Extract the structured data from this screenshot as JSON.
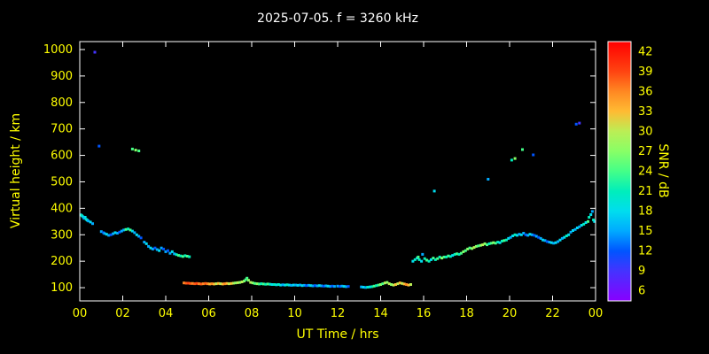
{
  "title": "2025-07-05. f = 3260 kHz",
  "colors": {
    "background": "#000000",
    "frame": "#ffffff",
    "title": "#ffffff",
    "tick_labels": "#ffff00",
    "axis_labels": "#ffff00"
  },
  "chart_data": {
    "type": "scatter",
    "title": "2025-07-05. f = 3260 kHz",
    "xlabel": "UT Time / hrs",
    "ylabel": "Virtual height / km",
    "xlim": [
      0,
      24
    ],
    "ylim": [
      50,
      1030
    ],
    "grid": false,
    "xtick_positions": [
      0,
      2,
      4,
      6,
      8,
      10,
      12,
      14,
      16,
      18,
      20,
      22,
      24
    ],
    "xtick_labels": [
      "00",
      "02",
      "04",
      "06",
      "08",
      "10",
      "12",
      "14",
      "16",
      "18",
      "20",
      "22",
      "00"
    ],
    "yticks": [
      100,
      200,
      300,
      400,
      500,
      600,
      700,
      800,
      900,
      1000
    ],
    "colorbar": {
      "label": "SNR / dB",
      "min": 4.5,
      "max": 43.5,
      "ticks": [
        6,
        9,
        12,
        15,
        18,
        21,
        24,
        27,
        30,
        33,
        36,
        39,
        42
      ],
      "stops": [
        [
          4.5,
          "#8800ff"
        ],
        [
          9,
          "#4433ff"
        ],
        [
          12,
          "#0055ff"
        ],
        [
          15,
          "#00aaff"
        ],
        [
          18,
          "#00ddee"
        ],
        [
          21,
          "#00eebb"
        ],
        [
          24,
          "#44ff88"
        ],
        [
          27,
          "#88ff66"
        ],
        [
          30,
          "#bbee55"
        ],
        [
          33,
          "#ffbb33"
        ],
        [
          36,
          "#ff8822"
        ],
        [
          39,
          "#ff4411"
        ],
        [
          43.5,
          "#ff0000"
        ]
      ]
    },
    "points": [
      [
        0.05,
        375,
        18
      ],
      [
        0.1,
        372,
        21
      ],
      [
        0.15,
        368,
        18
      ],
      [
        0.2,
        362,
        15
      ],
      [
        0.25,
        366,
        18
      ],
      [
        0.3,
        358,
        21
      ],
      [
        0.35,
        355,
        18
      ],
      [
        0.4,
        352,
        15
      ],
      [
        0.5,
        348,
        18
      ],
      [
        0.6,
        342,
        15
      ],
      [
        0.7,
        990,
        9
      ],
      [
        0.9,
        635,
        12
      ],
      [
        1.0,
        312,
        15
      ],
      [
        1.1,
        308,
        12
      ],
      [
        1.15,
        305,
        15
      ],
      [
        1.25,
        302,
        18
      ],
      [
        1.35,
        298,
        15
      ],
      [
        1.45,
        300,
        12
      ],
      [
        1.55,
        304,
        15
      ],
      [
        1.65,
        308,
        18
      ],
      [
        1.75,
        306,
        15
      ],
      [
        1.85,
        310,
        12
      ],
      [
        1.95,
        314,
        15
      ],
      [
        2.05,
        318,
        15
      ],
      [
        2.15,
        320,
        24
      ],
      [
        2.25,
        322,
        21
      ],
      [
        2.35,
        318,
        24
      ],
      [
        2.45,
        314,
        18
      ],
      [
        2.45,
        624,
        24
      ],
      [
        2.6,
        620,
        27
      ],
      [
        2.75,
        617,
        24
      ],
      [
        2.55,
        308,
        15
      ],
      [
        2.65,
        300,
        18
      ],
      [
        2.75,
        294,
        15
      ],
      [
        2.85,
        288,
        12
      ],
      [
        3.0,
        272,
        15
      ],
      [
        3.1,
        266,
        18
      ],
      [
        3.2,
        256,
        15
      ],
      [
        3.3,
        250,
        18
      ],
      [
        3.4,
        246,
        15
      ],
      [
        3.5,
        250,
        12
      ],
      [
        3.6,
        244,
        15
      ],
      [
        3.7,
        240,
        18
      ],
      [
        3.8,
        250,
        15
      ],
      [
        3.9,
        246,
        12
      ],
      [
        4.0,
        236,
        15
      ],
      [
        4.1,
        240,
        12
      ],
      [
        4.2,
        230,
        15
      ],
      [
        4.3,
        236,
        18
      ],
      [
        4.4,
        228,
        15
      ],
      [
        4.5,
        225,
        21
      ],
      [
        4.6,
        222,
        24
      ],
      [
        4.7,
        220,
        21
      ],
      [
        4.8,
        218,
        24
      ],
      [
        4.9,
        221,
        21
      ],
      [
        5.0,
        219,
        24
      ],
      [
        5.1,
        217,
        21
      ],
      [
        4.85,
        118,
        36
      ],
      [
        4.95,
        117,
        38
      ],
      [
        5.05,
        117,
        39
      ],
      [
        5.15,
        116,
        38
      ],
      [
        5.25,
        116,
        36
      ],
      [
        5.35,
        115,
        38
      ],
      [
        5.45,
        116,
        39
      ],
      [
        5.55,
        115,
        36
      ],
      [
        5.65,
        114,
        38
      ],
      [
        5.75,
        115,
        36
      ],
      [
        5.85,
        116,
        38
      ],
      [
        5.95,
        115,
        36
      ],
      [
        6.05,
        114,
        33
      ],
      [
        6.15,
        115,
        36
      ],
      [
        6.25,
        114,
        33
      ],
      [
        6.35,
        115,
        30
      ],
      [
        6.45,
        116,
        33
      ],
      [
        6.55,
        115,
        30
      ],
      [
        6.65,
        114,
        33
      ],
      [
        6.75,
        115,
        36
      ],
      [
        6.85,
        116,
        33
      ],
      [
        6.95,
        115,
        30
      ],
      [
        7.05,
        116,
        33
      ],
      [
        7.15,
        117,
        30
      ],
      [
        7.25,
        118,
        27
      ],
      [
        7.35,
        119,
        30
      ],
      [
        7.45,
        120,
        27
      ],
      [
        7.55,
        122,
        30
      ],
      [
        7.65,
        125,
        27
      ],
      [
        7.72,
        130,
        24
      ],
      [
        7.78,
        136,
        24
      ],
      [
        7.85,
        128,
        27
      ],
      [
        7.95,
        120,
        30
      ],
      [
        8.05,
        118,
        27
      ],
      [
        8.15,
        116,
        24
      ],
      [
        8.25,
        115,
        27
      ],
      [
        8.35,
        114,
        24
      ],
      [
        8.45,
        115,
        21
      ],
      [
        8.55,
        114,
        24
      ],
      [
        8.65,
        113,
        21
      ],
      [
        8.75,
        114,
        24
      ],
      [
        8.85,
        113,
        21
      ],
      [
        8.95,
        112,
        18
      ],
      [
        9.05,
        112,
        21
      ],
      [
        9.15,
        111,
        18
      ],
      [
        9.25,
        112,
        21
      ],
      [
        9.35,
        110,
        18
      ],
      [
        9.45,
        111,
        15
      ],
      [
        9.55,
        110,
        18
      ],
      [
        9.65,
        111,
        21
      ],
      [
        9.75,
        110,
        18
      ],
      [
        9.85,
        109,
        15
      ],
      [
        9.95,
        110,
        18
      ],
      [
        10.05,
        110,
        15
      ],
      [
        10.15,
        109,
        18
      ],
      [
        10.25,
        110,
        15
      ],
      [
        10.35,
        108,
        18
      ],
      [
        10.45,
        109,
        15
      ],
      [
        10.55,
        108,
        12
      ],
      [
        10.65,
        109,
        15
      ],
      [
        10.75,
        108,
        18
      ],
      [
        10.85,
        107,
        15
      ],
      [
        10.95,
        108,
        12
      ],
      [
        11.05,
        107,
        15
      ],
      [
        11.15,
        108,
        18
      ],
      [
        11.25,
        107,
        15
      ],
      [
        11.35,
        106,
        12
      ],
      [
        11.45,
        107,
        15
      ],
      [
        11.55,
        106,
        18
      ],
      [
        11.65,
        105,
        15
      ],
      [
        11.75,
        106,
        12
      ],
      [
        11.85,
        105,
        15
      ],
      [
        12.0,
        106,
        15
      ],
      [
        12.1,
        105,
        12
      ],
      [
        12.2,
        106,
        15
      ],
      [
        12.3,
        105,
        18
      ],
      [
        12.4,
        104,
        15
      ],
      [
        12.5,
        105,
        12
      ],
      [
        13.1,
        103,
        15
      ],
      [
        13.2,
        102,
        18
      ],
      [
        13.3,
        101,
        15
      ],
      [
        13.4,
        102,
        21
      ],
      [
        13.5,
        103,
        18
      ],
      [
        13.6,
        104,
        21
      ],
      [
        13.7,
        106,
        24
      ],
      [
        13.8,
        108,
        21
      ],
      [
        13.9,
        110,
        24
      ],
      [
        14.0,
        112,
        27
      ],
      [
        14.1,
        115,
        24
      ],
      [
        14.2,
        118,
        30
      ],
      [
        14.3,
        120,
        27
      ],
      [
        14.4,
        115,
        30
      ],
      [
        14.5,
        112,
        27
      ],
      [
        14.6,
        110,
        30
      ],
      [
        14.7,
        112,
        33
      ],
      [
        14.8,
        115,
        30
      ],
      [
        14.9,
        118,
        33
      ],
      [
        15.0,
        116,
        30
      ],
      [
        15.1,
        114,
        33
      ],
      [
        15.2,
        112,
        36
      ],
      [
        15.3,
        110,
        33
      ],
      [
        15.4,
        112,
        30
      ],
      [
        15.5,
        200,
        18
      ],
      [
        15.6,
        206,
        21
      ],
      [
        15.7,
        212,
        18
      ],
      [
        15.75,
        216,
        24
      ],
      [
        15.8,
        206,
        21
      ],
      [
        15.9,
        200,
        18
      ],
      [
        15.95,
        226,
        15
      ],
      [
        16.05,
        210,
        21
      ],
      [
        16.15,
        204,
        24
      ],
      [
        16.25,
        200,
        21
      ],
      [
        16.35,
        206,
        18
      ],
      [
        16.45,
        212,
        24
      ],
      [
        16.5,
        465,
        18
      ],
      [
        16.55,
        206,
        21
      ],
      [
        16.65,
        210,
        24
      ],
      [
        16.75,
        216,
        21
      ],
      [
        16.85,
        212,
        27
      ],
      [
        16.95,
        216,
        24
      ],
      [
        17.05,
        216,
        21
      ],
      [
        17.15,
        220,
        24
      ],
      [
        17.25,
        218,
        21
      ],
      [
        17.35,
        222,
        18
      ],
      [
        17.45,
        226,
        21
      ],
      [
        17.55,
        228,
        24
      ],
      [
        17.65,
        226,
        21
      ],
      [
        17.75,
        230,
        24
      ],
      [
        17.85,
        236,
        27
      ],
      [
        17.95,
        240,
        24
      ],
      [
        18.05,
        246,
        27
      ],
      [
        18.15,
        250,
        24
      ],
      [
        18.25,
        248,
        27
      ],
      [
        18.35,
        252,
        30
      ],
      [
        18.45,
        256,
        27
      ],
      [
        18.55,
        258,
        24
      ],
      [
        18.65,
        260,
        27
      ],
      [
        18.75,
        262,
        30
      ],
      [
        18.85,
        266,
        27
      ],
      [
        18.95,
        262,
        24
      ],
      [
        19.0,
        510,
        15
      ],
      [
        19.05,
        266,
        21
      ],
      [
        19.15,
        268,
        24
      ],
      [
        19.25,
        270,
        27
      ],
      [
        19.35,
        268,
        24
      ],
      [
        19.45,
        272,
        21
      ],
      [
        19.55,
        270,
        18
      ],
      [
        19.65,
        276,
        21
      ],
      [
        19.75,
        278,
        24
      ],
      [
        19.85,
        280,
        21
      ],
      [
        19.95,
        286,
        18
      ],
      [
        20.1,
        582,
        21
      ],
      [
        20.25,
        588,
        27
      ],
      [
        20.6,
        622,
        24
      ],
      [
        21.1,
        602,
        12
      ],
      [
        20.05,
        290,
        15
      ],
      [
        20.15,
        296,
        18
      ],
      [
        20.25,
        300,
        21
      ],
      [
        20.35,
        298,
        18
      ],
      [
        20.45,
        302,
        15
      ],
      [
        20.55,
        300,
        18
      ],
      [
        20.65,
        306,
        15
      ],
      [
        20.75,
        300,
        12
      ],
      [
        20.85,
        298,
        15
      ],
      [
        20.95,
        302,
        18
      ],
      [
        21.05,
        300,
        15
      ],
      [
        21.15,
        298,
        12
      ],
      [
        21.25,
        294,
        15
      ],
      [
        21.35,
        290,
        12
      ],
      [
        21.45,
        286,
        15
      ],
      [
        21.55,
        280,
        18
      ],
      [
        21.65,
        278,
        15
      ],
      [
        21.75,
        274,
        12
      ],
      [
        21.85,
        272,
        15
      ],
      [
        21.95,
        270,
        18
      ],
      [
        22.05,
        268,
        15
      ],
      [
        22.15,
        270,
        18
      ],
      [
        22.25,
        274,
        15
      ],
      [
        22.35,
        280,
        18
      ],
      [
        22.45,
        286,
        15
      ],
      [
        22.55,
        290,
        18
      ],
      [
        22.65,
        296,
        21
      ],
      [
        22.75,
        300,
        18
      ],
      [
        22.85,
        310,
        15
      ],
      [
        22.95,
        316,
        18
      ],
      [
        23.05,
        320,
        15
      ],
      [
        23.1,
        718,
        12
      ],
      [
        23.25,
        722,
        9
      ],
      [
        23.15,
        326,
        18
      ],
      [
        23.25,
        330,
        15
      ],
      [
        23.35,
        336,
        18
      ],
      [
        23.45,
        340,
        21
      ],
      [
        23.55,
        346,
        18
      ],
      [
        23.65,
        350,
        24
      ],
      [
        23.7,
        366,
        21
      ],
      [
        23.78,
        376,
        18
      ],
      [
        23.85,
        388,
        15
      ],
      [
        23.9,
        356,
        21
      ],
      [
        23.95,
        350,
        18
      ]
    ]
  }
}
